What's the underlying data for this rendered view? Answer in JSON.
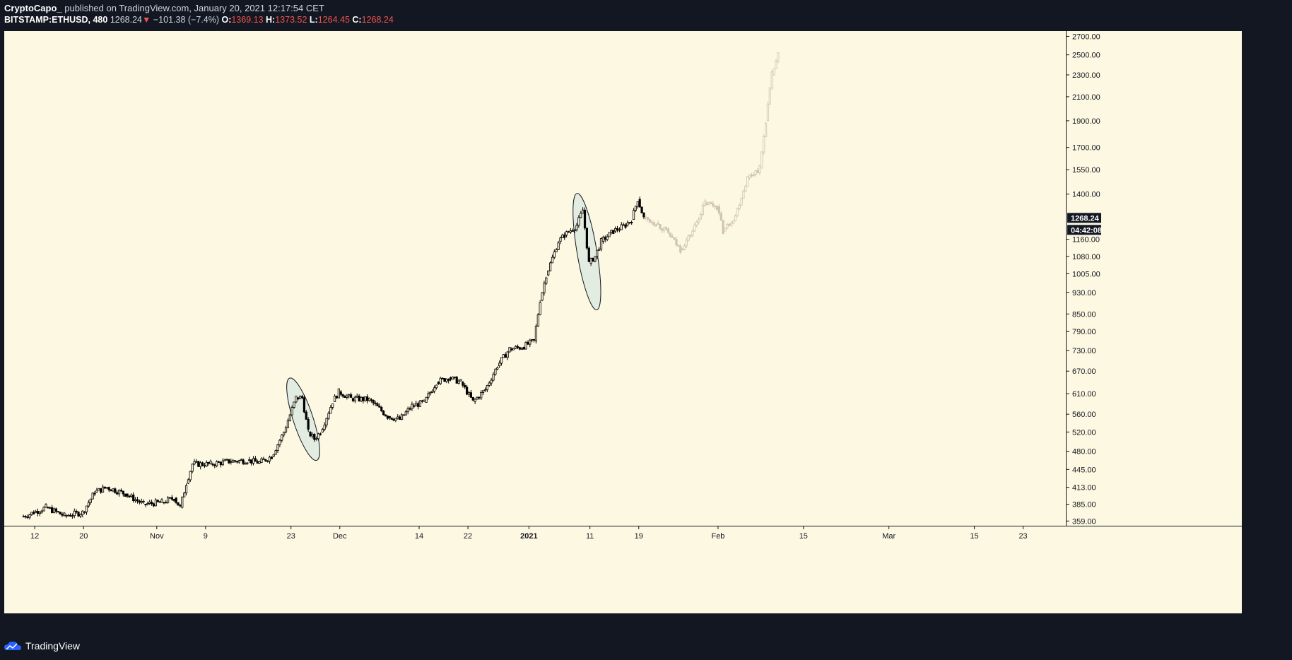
{
  "header": {
    "author": "CryptoCapo_",
    "published": " published on TradingView.com, January 20, 2021 12:17:54 CET",
    "symbol": "BITSTAMP:ETHUSD, 480",
    "last": "1268.24",
    "arrow": "▼",
    "change": "−101.38 (−7.4%)",
    "o_label": "O:",
    "o_value": "1369.13",
    "h_label": "H:",
    "h_value": "1373.52",
    "l_label": "L:",
    "l_value": "1264.45",
    "c_label": "C:",
    "c_value": "1268.24"
  },
  "price_tag": "1268.24",
  "countdown_tag": "04:42:08",
  "footer": {
    "brand": "TradingView"
  },
  "colors": {
    "background": "#fdf8e1",
    "frame": "#131722",
    "candle": "#000000",
    "projection": "#cfc4b0",
    "ellipse_fill": "#d0e4e0",
    "down": "#ef5350"
  },
  "chart_data": {
    "type": "candlestick",
    "yscale": "log",
    "ylim": [
      352,
      2760
    ],
    "y_ticks": [
      2700,
      2500,
      2300,
      2100,
      1900,
      1700,
      1550,
      1400,
      1160,
      1080,
      1005,
      930,
      850,
      790,
      730,
      670,
      610,
      560,
      520,
      480,
      445,
      413,
      385,
      359
    ],
    "y_tick_labels": [
      "2700.00",
      "2500.00",
      "2300.00",
      "2100.00",
      "1900.00",
      "1700.00",
      "1550.00",
      "1400.00",
      "1160.00",
      "1080.00",
      "1005.00",
      "930.00",
      "850.00",
      "790.00",
      "730.00",
      "670.00",
      "610.00",
      "560.00",
      "520.00",
      "480.00",
      "445.00",
      "413.00",
      "385.00",
      "359.00"
    ],
    "x_range": [
      "2020-10-07",
      "2021-03-30"
    ],
    "x_ticks": [
      {
        "date": "2020-10-12",
        "label": "12"
      },
      {
        "date": "2020-10-20",
        "label": "20"
      },
      {
        "date": "2020-11-01",
        "label": "Nov"
      },
      {
        "date": "2020-11-09",
        "label": "9"
      },
      {
        "date": "2020-11-23",
        "label": "23"
      },
      {
        "date": "2020-12-01",
        "label": "Dec"
      },
      {
        "date": "2020-12-14",
        "label": "14"
      },
      {
        "date": "2020-12-22",
        "label": "22"
      },
      {
        "date": "2021-01-01",
        "label": "2021"
      },
      {
        "date": "2021-01-11",
        "label": "11"
      },
      {
        "date": "2021-01-19",
        "label": "19"
      },
      {
        "date": "2021-02-01",
        "label": "Feb"
      },
      {
        "date": "2021-02-15",
        "label": "15"
      },
      {
        "date": "2021-03-01",
        "label": "Mar"
      },
      {
        "date": "2021-03-15",
        "label": "15"
      },
      {
        "date": "2021-03-23",
        "label": "23"
      }
    ],
    "actual_path": [
      [
        "2020-10-10",
        365
      ],
      [
        "2020-10-12",
        372
      ],
      [
        "2020-10-14",
        380
      ],
      [
        "2020-10-17",
        367
      ],
      [
        "2020-10-20",
        372
      ],
      [
        "2020-10-22",
        405
      ],
      [
        "2020-10-24",
        413
      ],
      [
        "2020-10-27",
        402
      ],
      [
        "2020-10-30",
        385
      ],
      [
        "2020-11-02",
        388
      ],
      [
        "2020-11-04",
        395
      ],
      [
        "2020-11-05",
        380
      ],
      [
        "2020-11-06",
        420
      ],
      [
        "2020-11-07",
        455
      ],
      [
        "2020-11-10",
        455
      ],
      [
        "2020-11-13",
        460
      ],
      [
        "2020-11-16",
        462
      ],
      [
        "2020-11-18",
        458
      ],
      [
        "2020-11-20",
        470
      ],
      [
        "2020-11-22",
        520
      ],
      [
        "2020-11-24",
        600
      ],
      [
        "2020-11-25",
        600
      ],
      [
        "2020-11-26",
        520
      ],
      [
        "2020-11-27",
        505
      ],
      [
        "2020-11-28",
        520
      ],
      [
        "2020-11-30",
        590
      ],
      [
        "2020-12-01",
        615
      ],
      [
        "2020-12-03",
        598
      ],
      [
        "2020-12-06",
        595
      ],
      [
        "2020-12-09",
        555
      ],
      [
        "2020-12-11",
        548
      ],
      [
        "2020-12-13",
        580
      ],
      [
        "2020-12-15",
        588
      ],
      [
        "2020-12-17",
        640
      ],
      [
        "2020-12-19",
        652
      ],
      [
        "2020-12-21",
        640
      ],
      [
        "2020-12-23",
        590
      ],
      [
        "2020-12-25",
        620
      ],
      [
        "2020-12-27",
        685
      ],
      [
        "2020-12-29",
        735
      ],
      [
        "2020-12-31",
        740
      ],
      [
        "2021-01-02",
        760
      ],
      [
        "2021-01-03",
        900
      ],
      [
        "2021-01-04",
        1000
      ],
      [
        "2021-01-06",
        1150
      ],
      [
        "2021-01-07",
        1180
      ],
      [
        "2021-01-09",
        1230
      ],
      [
        "2021-01-10",
        1310
      ],
      [
        "2021-01-11",
        1050
      ],
      [
        "2021-01-12",
        1080
      ],
      [
        "2021-01-13",
        1150
      ],
      [
        "2021-01-15",
        1200
      ],
      [
        "2021-01-17",
        1230
      ],
      [
        "2021-01-18",
        1260
      ],
      [
        "2021-01-19",
        1370
      ],
      [
        "2021-01-20",
        1268
      ]
    ],
    "projection_path": [
      [
        "2021-01-20",
        1268
      ],
      [
        "2021-01-22",
        1240
      ],
      [
        "2021-01-24",
        1190
      ],
      [
        "2021-01-26",
        1110
      ],
      [
        "2021-01-28",
        1200
      ],
      [
        "2021-01-30",
        1350
      ],
      [
        "2021-02-01",
        1330
      ],
      [
        "2021-02-02",
        1200
      ],
      [
        "2021-02-04",
        1280
      ],
      [
        "2021-02-06",
        1500
      ],
      [
        "2021-02-08",
        1560
      ],
      [
        "2021-02-09",
        1900
      ],
      [
        "2021-02-10",
        2300
      ],
      [
        "2021-02-11",
        2500
      ]
    ],
    "highlight_ellipses": [
      {
        "start": "2020-11-23",
        "end": "2020-11-27",
        "high": 640,
        "low": 470
      },
      {
        "start": "2021-01-09",
        "end": "2021-01-12",
        "high": 1380,
        "low": 880
      }
    ],
    "last_price": 1268.24
  }
}
